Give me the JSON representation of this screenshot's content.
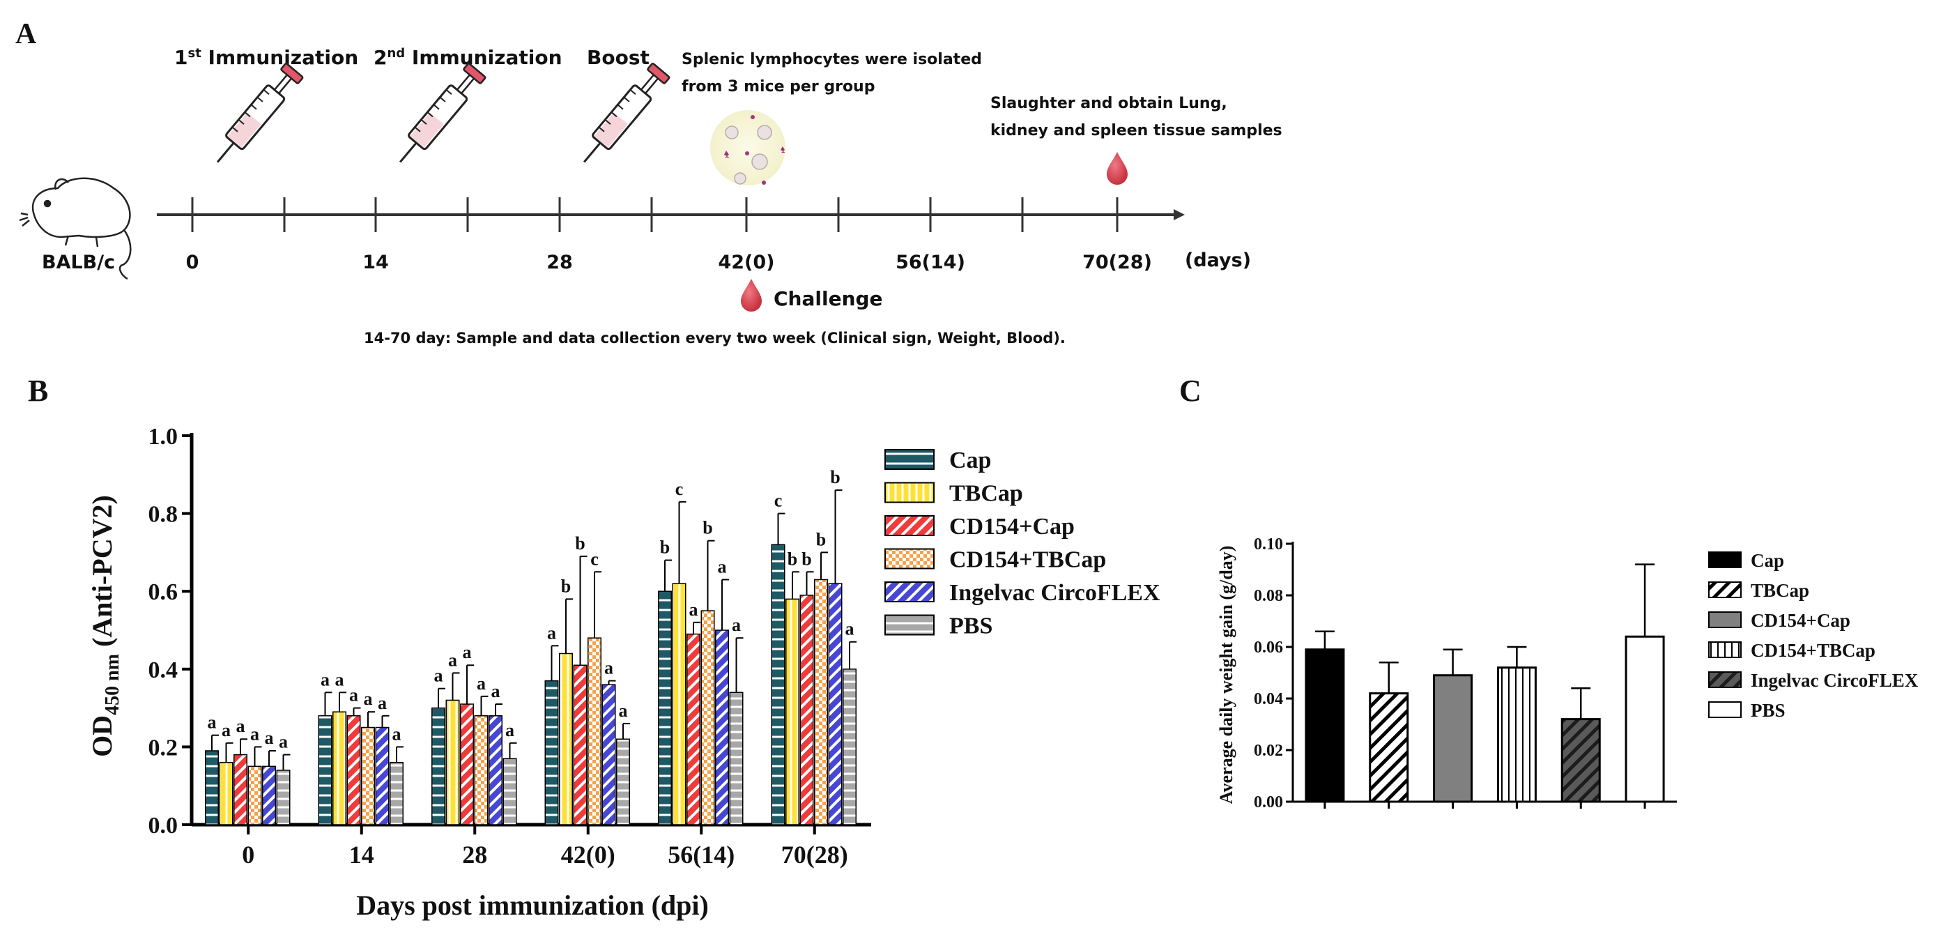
{
  "panel_a": {
    "label": "A",
    "mouse_label": "BALB/c",
    "days_label": "(days)",
    "ticks": [
      "0",
      "14",
      "28",
      "42(0)",
      "56(14)",
      "70(28)"
    ],
    "events": [
      {
        "prefix": "1",
        "sup": "st",
        "text": " Immunization",
        "icon": "syringe-icon"
      },
      {
        "prefix": "2",
        "sup": "nd",
        "text": " Immunization",
        "icon": "syringe-icon"
      },
      {
        "prefix": "",
        "sup": "",
        "text": "Boost",
        "icon": "syringe-icon"
      }
    ],
    "lymph_line1": "Splenic lymphocytes were isolated",
    "lymph_line2": "from 3 mice per group",
    "slaughter_line1": "Slaughter and obtain Lung,",
    "slaughter_line2": "kidney and spleen tissue samples",
    "challenge": "Challenge",
    "footnote": "14-70 day: Sample and data collection every two week (Clinical sign, Weight, Blood)."
  },
  "panel_b_label": "B",
  "panel_c_label": "C",
  "series_styles": [
    {
      "name": "Cap",
      "fill": "#1e5a66",
      "pattern": "hlines",
      "stroke": "#ffffff"
    },
    {
      "name": "TBCap",
      "fill": "#ffe135",
      "pattern": "vlines",
      "stroke": "#ffffff"
    },
    {
      "name": "CD154+Cap",
      "fill": "#ef3b3b",
      "pattern": "diag",
      "stroke": "#ffffff"
    },
    {
      "name": "CD154+TBCap",
      "fill": "#f7a24a",
      "pattern": "checker",
      "stroke": "#ffffff"
    },
    {
      "name": "Ingelvac CircoFLEX",
      "fill": "#4747d6",
      "pattern": "diag",
      "stroke": "#ffffff"
    },
    {
      "name": "PBS",
      "fill": "#a8a8a8",
      "pattern": "hlines",
      "stroke": "#ffffff"
    }
  ],
  "chart_data": [
    {
      "type": "bar",
      "title": "",
      "ylabel_main": "OD",
      "ylabel_sub": "450 nm",
      "ylabel_rest": " (Anti-PCV2)",
      "xlabel": "Days post immunization (dpi)",
      "categories": [
        "0",
        "14",
        "28",
        "42(0)",
        "56(14)",
        "70(28)"
      ],
      "ylim": [
        0,
        1.0
      ],
      "yticks": [
        "0.0",
        "0.2",
        "0.4",
        "0.6",
        "0.8",
        "1.0"
      ],
      "series": [
        {
          "name": "Cap",
          "values": [
            0.19,
            0.28,
            0.3,
            0.37,
            0.6,
            0.72
          ],
          "errors": [
            0.04,
            0.06,
            0.05,
            0.09,
            0.08,
            0.08
          ],
          "letters": [
            "a",
            "a",
            "a",
            "a",
            "b",
            "c"
          ]
        },
        {
          "name": "TBCap",
          "values": [
            0.16,
            0.29,
            0.32,
            0.44,
            0.62,
            0.58
          ],
          "errors": [
            0.05,
            0.05,
            0.07,
            0.14,
            0.21,
            0.07
          ],
          "letters": [
            "a",
            "a",
            "a",
            "b",
            "c",
            "b"
          ]
        },
        {
          "name": "CD154+Cap",
          "values": [
            0.18,
            0.28,
            0.31,
            0.41,
            0.49,
            0.59
          ],
          "errors": [
            0.04,
            0.02,
            0.1,
            0.28,
            0.03,
            0.06
          ],
          "letters": [
            "a",
            "a",
            "a",
            "b",
            "a",
            "b"
          ]
        },
        {
          "name": "CD154+TBCap",
          "values": [
            0.15,
            0.25,
            0.28,
            0.48,
            0.55,
            0.63
          ],
          "errors": [
            0.05,
            0.04,
            0.05,
            0.17,
            0.18,
            0.07
          ],
          "letters": [
            "a",
            "a",
            "a",
            "c",
            "b",
            "b"
          ]
        },
        {
          "name": "Ingelvac CircoFLEX",
          "values": [
            0.15,
            0.25,
            0.28,
            0.36,
            0.5,
            0.62
          ],
          "errors": [
            0.04,
            0.03,
            0.03,
            0.01,
            0.13,
            0.24
          ],
          "letters": [
            "a",
            "a",
            "a",
            "a",
            "a",
            "b"
          ]
        },
        {
          "name": "PBS",
          "values": [
            0.14,
            0.16,
            0.17,
            0.22,
            0.34,
            0.4
          ],
          "errors": [
            0.04,
            0.04,
            0.04,
            0.04,
            0.14,
            0.07
          ],
          "letters": [
            "a",
            "a",
            "a",
            "a",
            "a",
            "a"
          ]
        }
      ],
      "legend": [
        "Cap",
        "TBCap",
        "CD154+Cap",
        "CD154+TBCap",
        "Ingelvac CircoFLEX",
        "PBS"
      ]
    },
    {
      "type": "bar",
      "title": "",
      "ylabel": "Average daily weight gain (g/day)",
      "xlabel": "",
      "categories": [
        "Cap",
        "TBCap",
        "CD154+Cap",
        "CD154+TBCap",
        "Ingelvac CircoFLEX",
        "PBS"
      ],
      "values": [
        0.059,
        0.042,
        0.049,
        0.052,
        0.032,
        0.064
      ],
      "errors": [
        0.007,
        0.012,
        0.01,
        0.008,
        0.012,
        0.028
      ],
      "ylim": [
        0,
        0.1
      ],
      "yticks": [
        "0.00",
        "0.02",
        "0.04",
        "0.06",
        "0.08",
        "0.10"
      ],
      "styles": [
        {
          "fill": "#000000",
          "pattern": "none"
        },
        {
          "fill": "#ffffff",
          "pattern": "bwdiag"
        },
        {
          "fill": "#808080",
          "pattern": "none"
        },
        {
          "fill": "#ffffff",
          "pattern": "bwvlines"
        },
        {
          "fill": "#606060",
          "pattern": "gdiag"
        },
        {
          "fill": "#ffffff",
          "pattern": "none"
        }
      ],
      "legend": [
        "Cap",
        "TBCap",
        "CD154+Cap",
        "CD154+TBCap",
        "Ingelvac CircoFLEX",
        "PBS"
      ]
    }
  ]
}
